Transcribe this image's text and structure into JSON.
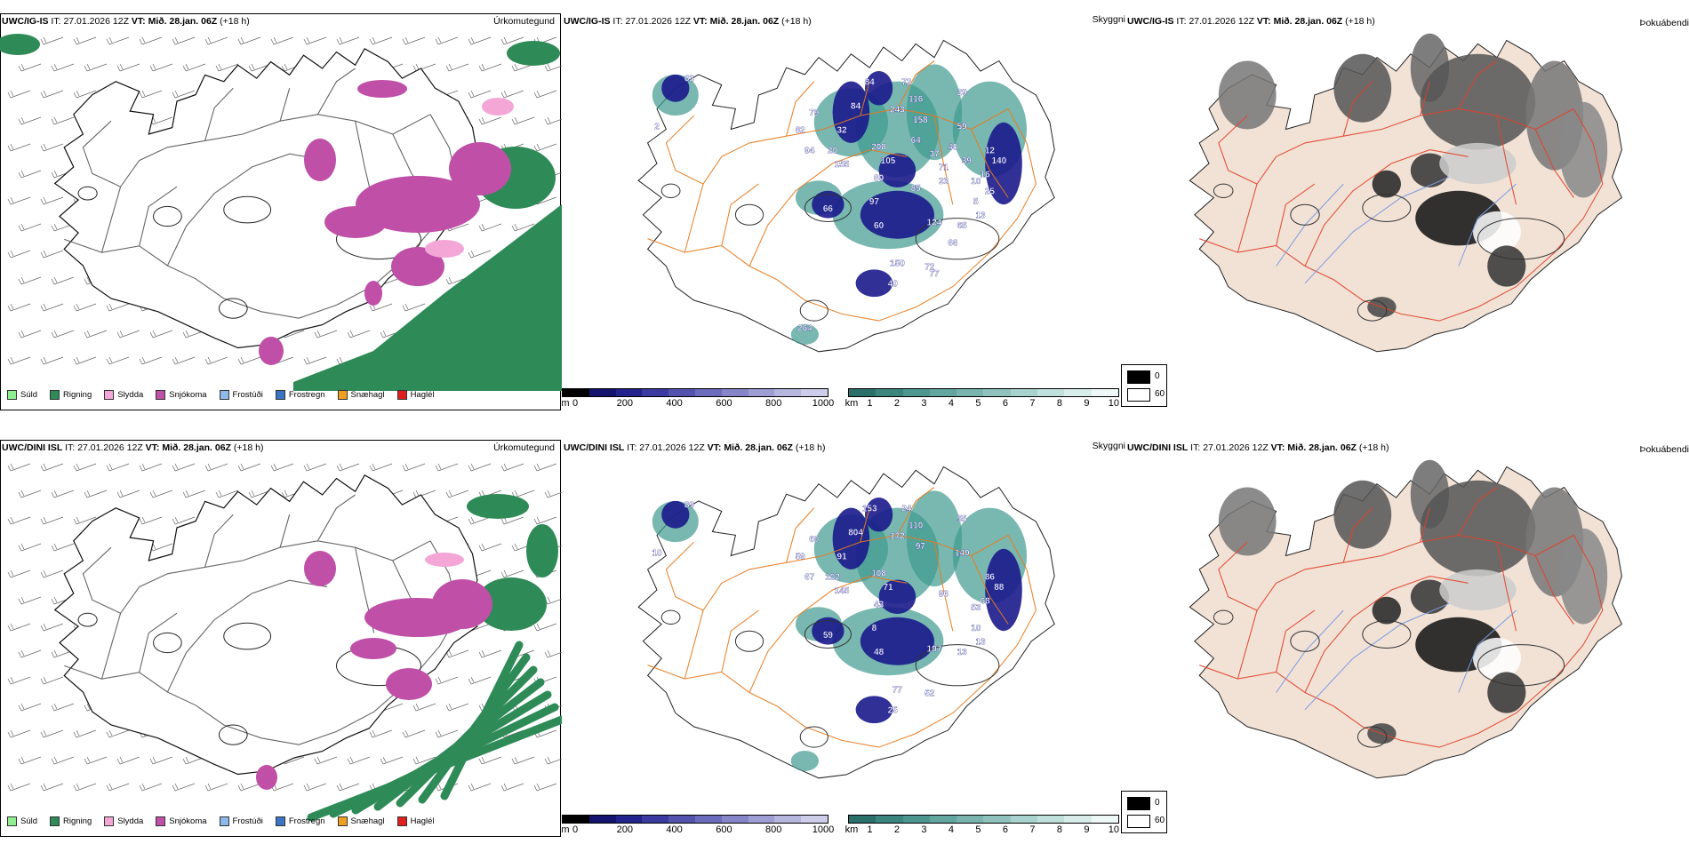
{
  "rows": [
    {
      "model": "UWC/IG-IS",
      "it_label": "IT:",
      "init_time": "27.01.2026 12Z",
      "vt_label": "VT:",
      "valid_time": "Mið. 28.jan. 06Z",
      "lead": "(+18 h)",
      "panels": {
        "precip": "Úrkomutegund",
        "cloud": "Skyggni",
        "fog": "Þokuábendi"
      },
      "cloud_labels": [
        "63",
        "2",
        "79",
        "82",
        "94",
        "20",
        "32",
        "155",
        "84",
        "84",
        "243",
        "116",
        "158",
        "59",
        "72",
        "29",
        "208",
        "105",
        "80",
        "71",
        "12",
        "140",
        "10",
        "16",
        "97",
        "66",
        "60",
        "124",
        "65",
        "13",
        "40",
        "150",
        "72",
        "5",
        "25",
        "66",
        "77",
        "264",
        "64",
        "37",
        "40",
        "39",
        "23",
        "85"
      ]
    },
    {
      "model": "UWC/DINI ISL",
      "it_label": "IT:",
      "init_time": "27.01.2026 12Z",
      "vt_label": "VT:",
      "valid_time": "Mið. 28.jan. 06Z",
      "lead": "(+18 h)",
      "panels": {
        "precip": "Úrkomutegund",
        "cloud": "Skyggni",
        "fog": "Þokuábendi"
      },
      "cloud_labels": [
        "89",
        "10",
        "60",
        "59",
        "67",
        "102",
        "91",
        "145",
        "153",
        "804",
        "172",
        "110",
        "97",
        "140",
        "24",
        "55",
        "108",
        "71",
        "43",
        "96",
        "86",
        "88",
        "53",
        "68",
        "8",
        "59",
        "48",
        "197",
        "13",
        "13",
        "25",
        "77",
        "52",
        "10"
      ]
    }
  ],
  "precip_legend": [
    {
      "label": "Súld",
      "color": "#90ee90"
    },
    {
      "label": "Rigning",
      "color": "#2e8b57"
    },
    {
      "label": "Slydda",
      "color": "#f4a6d7"
    },
    {
      "label": "Snjókoma",
      "color": "#c04fa8"
    },
    {
      "label": "Frostúði",
      "color": "#8fb8ea"
    },
    {
      "label": "Frostregn",
      "color": "#3b74c4"
    },
    {
      "label": "Snæhagl",
      "color": "#f0a020"
    },
    {
      "label": "Haglél",
      "color": "#e02020"
    }
  ],
  "cloudbase_legend": {
    "unit": "m",
    "ticks": [
      "0",
      "200",
      "400",
      "600",
      "800",
      "1000"
    ]
  },
  "visibility_legend": {
    "unit": "km",
    "ticks": [
      "1",
      "2",
      "3",
      "4",
      "5",
      "6",
      "7",
      "8",
      "9",
      "10"
    ]
  },
  "fog_legend": {
    "black_label": "0",
    "white_label": "60"
  },
  "colors": {
    "rain": "#2e8b57",
    "snow": "#c04fa8",
    "sleet": "#f4a6d7",
    "land_fog": "#f2e2d6",
    "roads_orange": "#e87a1e",
    "roads_red": "#e0412a",
    "cloud_blue": "#1a1a8c",
    "vis_teal": "#3e9a8f",
    "rivers": "#7a9be0"
  }
}
